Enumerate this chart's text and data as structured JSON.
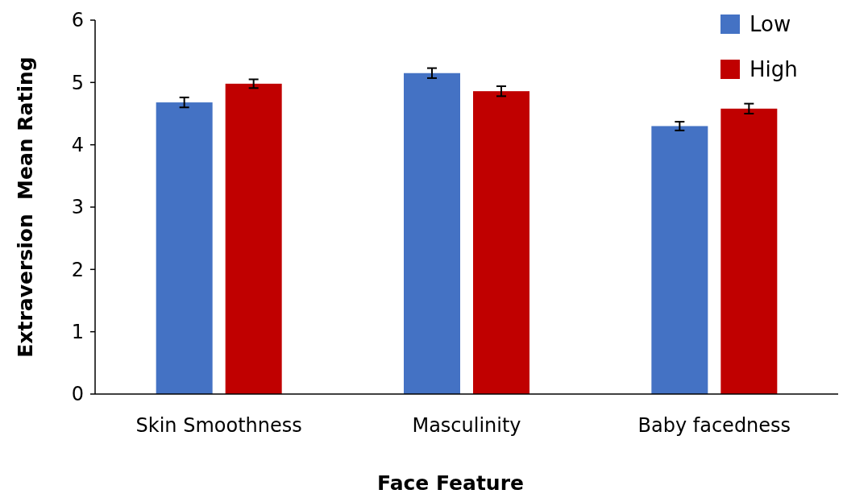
{
  "chart_data": {
    "type": "bar",
    "xlabel": "Face Feature",
    "ylabel": "Extraversion  Mean Rating",
    "categories": [
      "Skin Smoothness",
      "Masculinity",
      "Baby facedness"
    ],
    "series": [
      {
        "name": "Low",
        "color": "#4472c4",
        "values": [
          4.68,
          5.15,
          4.3
        ],
        "errors": [
          0.08,
          0.08,
          0.07
        ]
      },
      {
        "name": "High",
        "color": "#c00000",
        "values": [
          4.98,
          4.86,
          4.58
        ],
        "errors": [
          0.07,
          0.08,
          0.08
        ]
      }
    ],
    "ylim": [
      0,
      6
    ],
    "yticks": [
      0,
      1,
      2,
      3,
      4,
      5,
      6
    ],
    "grid": false,
    "legend": "top right"
  }
}
